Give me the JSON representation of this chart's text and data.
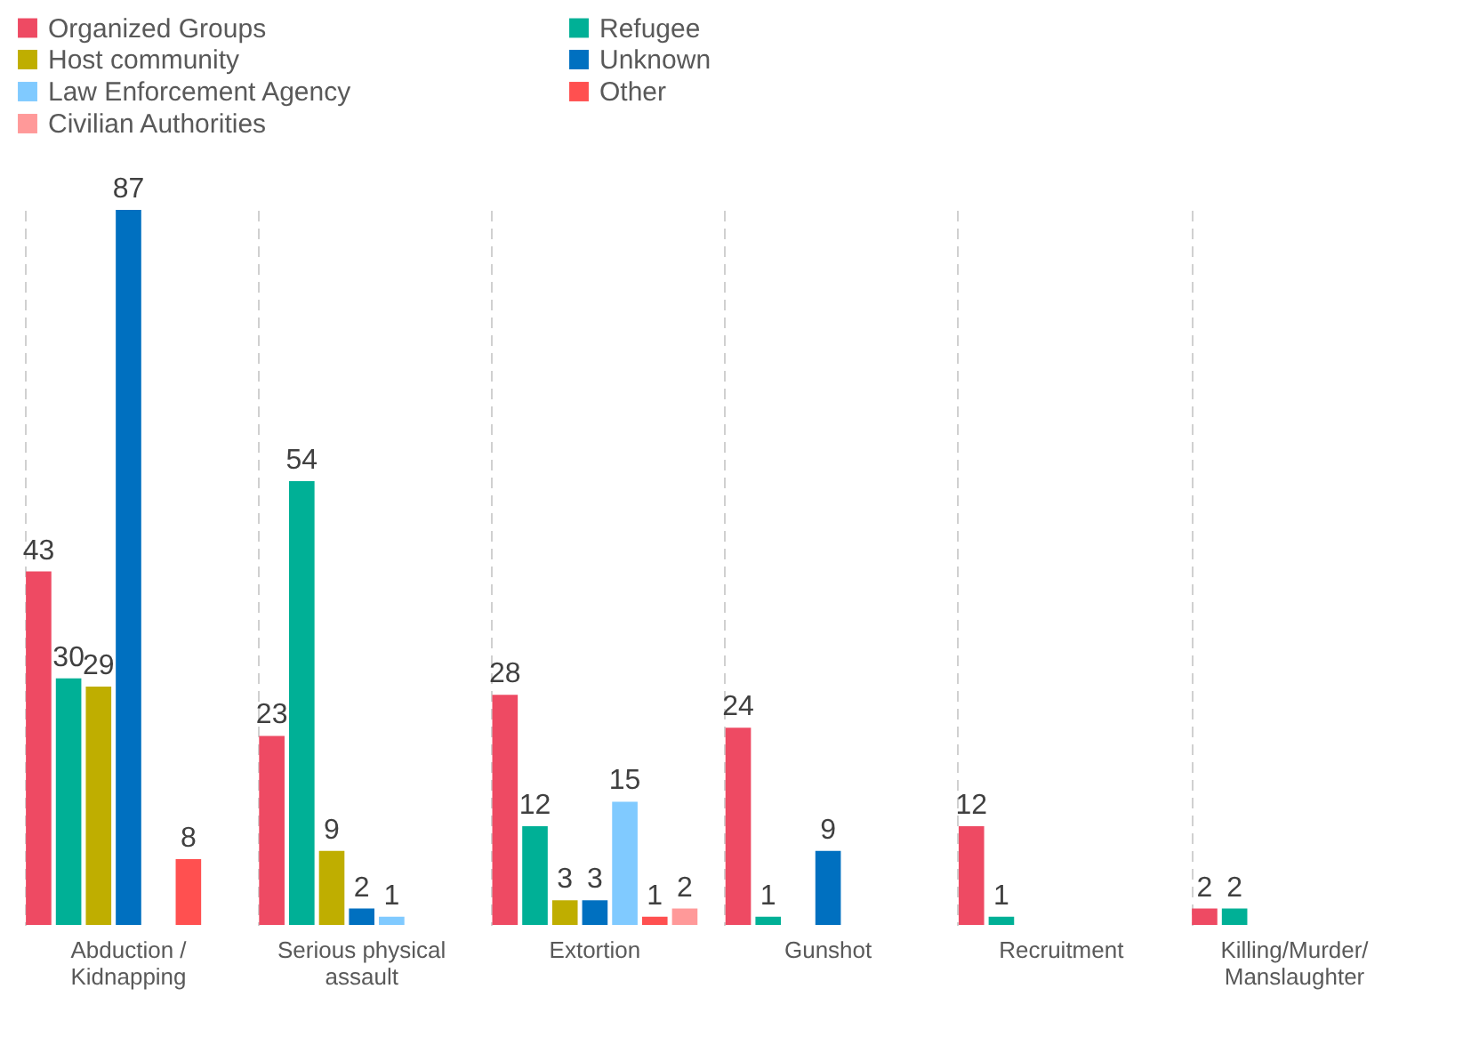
{
  "chart_data": {
    "type": "bar",
    "categories": [
      "Abduction / Kidnapping",
      "Serious physical assault",
      "Extortion",
      "Gunshot",
      "Recruitment",
      "Killing/Murder/Manslaughter"
    ],
    "series": [
      {
        "name": "Organized Groups",
        "color": "#ee4a63",
        "values": [
          43,
          23,
          28,
          24,
          12,
          2
        ]
      },
      {
        "name": "Refugee",
        "color": "#00b096",
        "values": [
          30,
          54,
          12,
          1,
          1,
          2
        ]
      },
      {
        "name": "Host community",
        "color": "#bfae00",
        "values": [
          29,
          9,
          3,
          null,
          null,
          null
        ]
      },
      {
        "name": "Unknown",
        "color": "#0070c0",
        "values": [
          87,
          2,
          3,
          9,
          null,
          null
        ]
      },
      {
        "name": "Law Enforcement Agency",
        "color": "#80caff",
        "values": [
          null,
          1,
          15,
          null,
          null,
          null
        ]
      },
      {
        "name": "Other",
        "color": "#ff5050",
        "values": [
          8,
          null,
          1,
          null,
          null,
          null
        ]
      },
      {
        "name": "Civilian Authorities",
        "color": "#ff9999",
        "values": [
          null,
          null,
          2,
          null,
          null,
          null
        ]
      }
    ],
    "data_labels": true,
    "grid": "x",
    "legend": "top"
  }
}
